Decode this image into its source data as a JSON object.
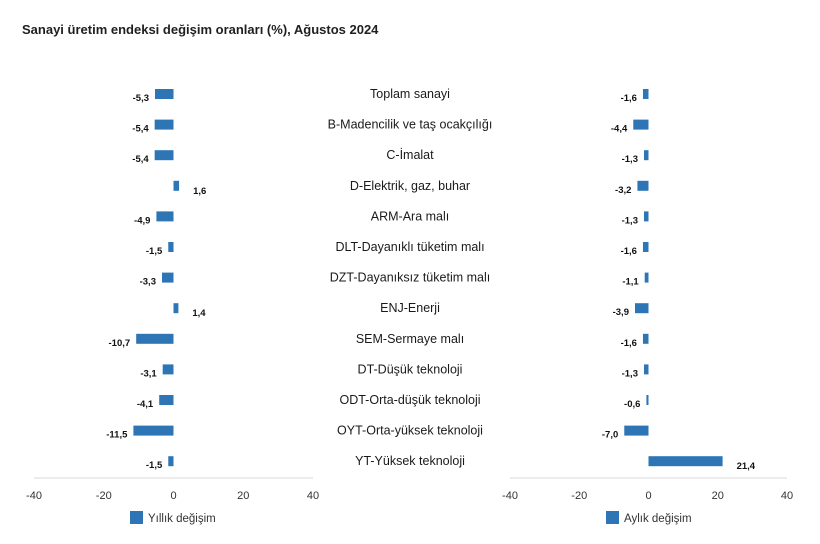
{
  "title": "Sanayi üretim endeksi değişim oranları (%), Ağustos 2024",
  "colors": {
    "bar": "#2e75b6",
    "axis": "#d9d9d9"
  },
  "chart_data": [
    {
      "type": "bar",
      "orientation": "horizontal",
      "title": "Sanayi üretim endeksi değişim oranları (%), Ağustos 2024",
      "categories": [
        "Toplam sanayi",
        "B-Madencilik ve taş ocakçılığı",
        "C-İmalat",
        "D-Elektrik, gaz, buhar",
        "ARM-Ara malı",
        "DLT-Dayanıklı tüketim malı",
        "DZT-Dayanıksız tüketim malı",
        "ENJ-Enerji",
        "SEM-Sermaye malı",
        "DT-Düşük teknoloji",
        "ODT-Orta-düşük teknoloji",
        "OYT-Orta-yüksek teknoloji",
        "YT-Yüksek teknoloji"
      ],
      "series": [
        {
          "name": "Yıllık değişim",
          "values": [
            -5.3,
            -5.4,
            -5.4,
            1.6,
            -4.9,
            -1.5,
            -3.3,
            1.4,
            -10.7,
            -3.1,
            -4.1,
            -11.5,
            -1.5
          ],
          "labels": [
            "-5,3",
            "-5,4",
            "-5,4",
            "1,6",
            "-4,9",
            "-1,5",
            "-3,3",
            "1,4",
            "-10,7",
            "-3,1",
            "-4,1",
            "-11,5",
            "-1,5"
          ]
        }
      ],
      "xlim": [
        -40,
        40
      ],
      "xticks": [
        -40,
        -20,
        0,
        20,
        40
      ],
      "xtick_labels": [
        "-40",
        "-20",
        "0",
        "20",
        "40"
      ],
      "legend": "bottom-left",
      "grid": false
    },
    {
      "type": "bar",
      "orientation": "horizontal",
      "categories": [
        "Toplam sanayi",
        "B-Madencilik ve taş ocakçılığı",
        "C-İmalat",
        "D-Elektrik, gaz, buhar",
        "ARM-Ara malı",
        "DLT-Dayanıklı tüketim malı",
        "DZT-Dayanıksız tüketim malı",
        "ENJ-Enerji",
        "SEM-Sermaye malı",
        "DT-Düşük teknoloji",
        "ODT-Orta-düşük teknoloji",
        "OYT-Orta-yüksek teknoloji",
        "YT-Yüksek teknoloji"
      ],
      "series": [
        {
          "name": "Aylık değişim",
          "values": [
            -1.6,
            -4.4,
            -1.3,
            -3.2,
            -1.3,
            -1.6,
            -1.1,
            -3.9,
            -1.6,
            -1.3,
            -0.6,
            -7.0,
            21.4
          ],
          "labels": [
            "-1,6",
            "-4,4",
            "-1,3",
            "-3,2",
            "-1,3",
            "-1,6",
            "-1,1",
            "-3,9",
            "-1,6",
            "-1,3",
            "-0,6",
            "-7,0",
            "21,4"
          ]
        }
      ],
      "xlim": [
        -40,
        40
      ],
      "xticks": [
        -40,
        -20,
        0,
        20,
        40
      ],
      "xtick_labels": [
        "-40",
        "-20",
        "0",
        "20",
        "40"
      ],
      "legend": "bottom-right",
      "grid": false
    }
  ]
}
